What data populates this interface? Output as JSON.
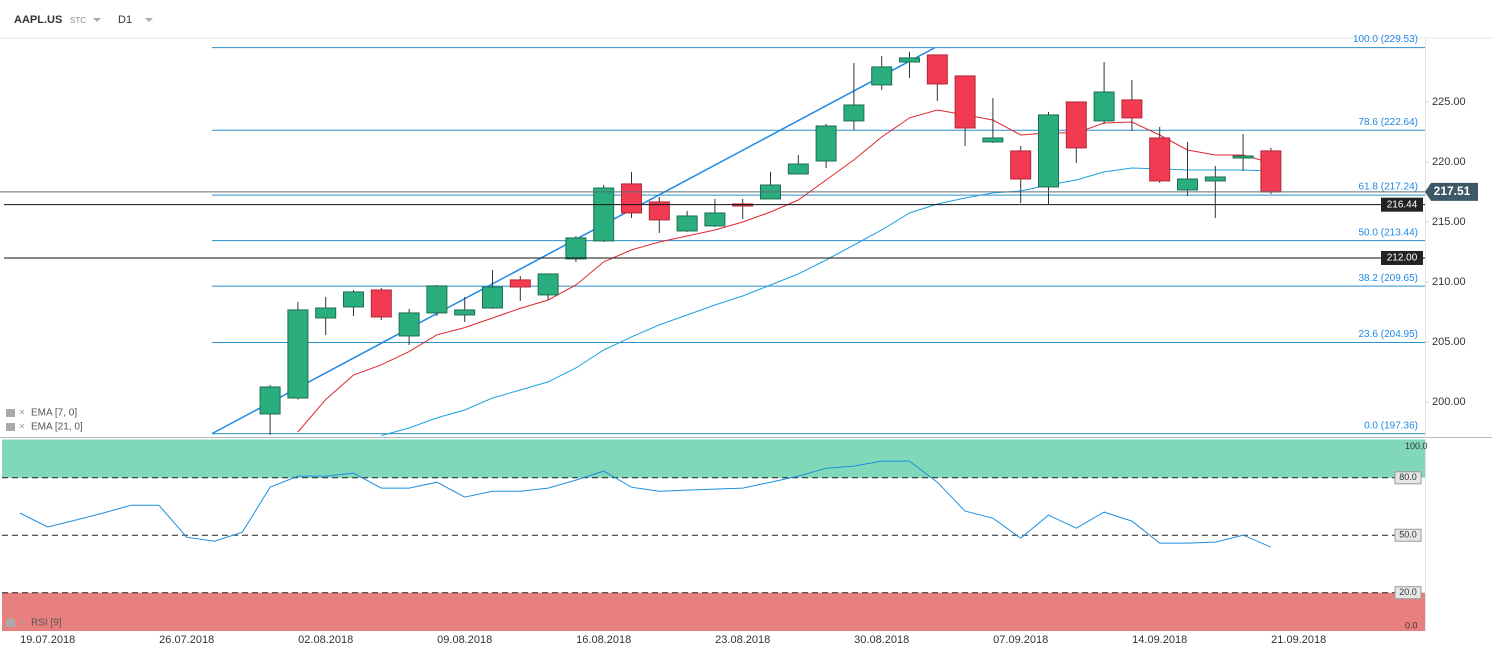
{
  "header": {
    "symbol": "AAPL.US",
    "market": "STC",
    "interval": "D1"
  },
  "chart_data": [
    {
      "type": "candlestick",
      "categories": [
        null,
        "19.07.2018",
        null,
        null,
        null,
        null,
        "26.07.2018",
        null,
        null,
        null,
        null,
        "02.08.2018",
        null,
        null,
        null,
        null,
        "09.08.2018",
        null,
        null,
        null,
        null,
        "16.08.2018",
        null,
        null,
        null,
        null,
        "23.08.2018",
        null,
        null,
        null,
        null,
        "30.08.2018",
        null,
        null,
        null,
        null,
        "07.09.2018",
        null,
        null,
        null,
        null,
        "14.09.2018",
        null,
        null,
        null,
        null,
        "21.09.2018",
        null,
        null,
        null,
        null
      ],
      "open": [
        null,
        null,
        null,
        null,
        null,
        null,
        null,
        null,
        null,
        199.0,
        200.33,
        207.0,
        207.92,
        209.33,
        205.5,
        207.42,
        207.25,
        207.83,
        210.17,
        208.92,
        211.92,
        213.42,
        218.17,
        216.67,
        214.25,
        214.67,
        216.5,
        216.92,
        219.0,
        220.08,
        223.42,
        226.42,
        228.33,
        228.92,
        227.17,
        221.67,
        220.92,
        217.92,
        225.0,
        223.42,
        225.17,
        222.0,
        217.67,
        218.42,
        220.33,
        220.92,
        null,
        null,
        null,
        null,
        null
      ],
      "high": [
        null,
        null,
        null,
        null,
        null,
        null,
        null,
        null,
        null,
        201.42,
        208.33,
        208.75,
        209.33,
        209.5,
        207.75,
        209.75,
        208.75,
        211.0,
        210.5,
        210.67,
        213.83,
        218.08,
        219.17,
        217.08,
        215.92,
        216.92,
        216.92,
        219.17,
        220.58,
        223.17,
        228.25,
        228.83,
        229.17,
        228.92,
        227.17,
        225.33,
        221.33,
        224.17,
        225.0,
        228.33,
        226.83,
        222.92,
        221.67,
        219.67,
        222.33,
        221.17,
        null,
        null,
        null,
        null,
        null
      ],
      "low": [
        null,
        null,
        null,
        null,
        null,
        null,
        null,
        null,
        null,
        197.25,
        200.2,
        205.58,
        207.17,
        206.83,
        204.75,
        207.17,
        206.67,
        207.75,
        208.42,
        208.5,
        211.67,
        213.33,
        215.33,
        214.08,
        214.17,
        214.58,
        215.25,
        216.92,
        219.0,
        219.5,
        222.67,
        226.0,
        227.0,
        225.08,
        221.33,
        221.58,
        216.58,
        216.5,
        219.92,
        223.17,
        222.58,
        218.25,
        217.17,
        215.33,
        219.25,
        217.33,
        null,
        null,
        null,
        null,
        null
      ],
      "close": [
        null,
        null,
        null,
        null,
        null,
        null,
        null,
        null,
        null,
        201.25,
        207.67,
        207.83,
        209.17,
        207.08,
        207.42,
        209.67,
        207.67,
        209.58,
        209.58,
        210.67,
        213.67,
        217.83,
        215.75,
        215.17,
        215.5,
        215.75,
        216.33,
        218.08,
        219.83,
        223.0,
        224.75,
        227.92,
        228.67,
        226.5,
        222.83,
        222.0,
        218.58,
        223.92,
        221.17,
        225.83,
        223.67,
        218.42,
        218.58,
        218.75,
        220.5,
        217.5,
        null,
        null,
        null,
        null,
        null
      ],
      "up_color": "#2bae7e",
      "down_color": "#f23a52",
      "series": [
        {
          "name": "EMA [7, 0]",
          "color": "#e0262f",
          "values": [
            null,
            null,
            null,
            null,
            null,
            null,
            null,
            null,
            null,
            null,
            197.5,
            200.2,
            202.25,
            203.1,
            204.2,
            205.6,
            206.2,
            207.0,
            207.8,
            208.5,
            209.75,
            211.67,
            212.67,
            213.33,
            213.83,
            214.33,
            215.0,
            215.83,
            216.83,
            218.5,
            220.17,
            222.08,
            223.67,
            224.33,
            223.92,
            223.5,
            222.25,
            222.42,
            222.42,
            223.25,
            223.33,
            222.25,
            221.0,
            220.58,
            220.58,
            219.92,
            null,
            null,
            null,
            null,
            null
          ]
        },
        {
          "name": "EMA [21, 0]",
          "color": "#1ea0e0",
          "values": [
            null,
            null,
            null,
            null,
            null,
            null,
            null,
            null,
            null,
            null,
            null,
            null,
            null,
            197.2,
            197.83,
            198.67,
            199.33,
            200.33,
            201.0,
            201.67,
            202.83,
            204.33,
            205.42,
            206.42,
            207.25,
            208.08,
            208.83,
            209.75,
            210.67,
            211.83,
            213.08,
            214.33,
            215.75,
            216.5,
            217.0,
            217.42,
            217.58,
            218.08,
            218.5,
            219.17,
            219.5,
            219.42,
            219.33,
            219.33,
            219.33,
            219.25,
            null,
            null,
            null,
            null,
            null
          ]
        }
      ],
      "ylim": [
        197.08,
        230.33
      ],
      "yticks": [
        {
          "value": 200,
          "label": "200.00"
        },
        {
          "value": 205,
          "label": "205.00"
        },
        {
          "value": 210,
          "label": "210.00"
        },
        {
          "value": 215,
          "label": "215.00"
        },
        {
          "value": 220,
          "label": "220.00"
        },
        {
          "value": 225,
          "label": "225.00"
        }
      ],
      "fibonacci": {
        "color": "#2d8fc9",
        "levels": [
          {
            "value": 229.53,
            "label": "100.0 (229.53)"
          },
          {
            "value": 222.64,
            "label": "78.6 (222.64)"
          },
          {
            "value": 217.24,
            "label": "61.8 (217.24)"
          },
          {
            "value": 213.44,
            "label": "50.0 (213.44)"
          },
          {
            "value": 209.65,
            "label": "38.2 (209.65)"
          },
          {
            "value": 204.95,
            "label": "23.6 (204.95)"
          },
          {
            "value": 197.36,
            "label": "0.0 (197.36)"
          }
        ]
      },
      "price_lines": [
        {
          "value": 216.44,
          "label": "216.44"
        },
        {
          "value": 212.0,
          "label": "212.00"
        }
      ],
      "last_price": {
        "value": 217.51,
        "label": "217.51"
      }
    },
    {
      "type": "line",
      "series": [
        {
          "name": "RSI [9]",
          "color": "#1e90e0",
          "values": [
            61.6,
            54.3,
            57.9,
            61.6,
            65.7,
            65.7,
            49.0,
            46.9,
            51.6,
            75.1,
            80.9,
            80.9,
            82.4,
            74.6,
            74.6,
            77.7,
            69.9,
            73.0,
            73.0,
            74.6,
            78.8,
            83.5,
            75.1,
            73.0,
            73.6,
            74.1,
            74.6,
            77.7,
            80.9,
            85.0,
            86.1,
            88.7,
            88.7,
            77.7,
            62.6,
            58.9,
            48.5,
            60.5,
            53.7,
            62.1,
            57.4,
            45.9,
            45.9,
            46.4,
            50.1,
            43.8,
            null,
            null,
            null,
            null,
            null
          ]
        }
      ],
      "ylim": [
        0,
        100
      ],
      "yticks": [
        {
          "value": 100,
          "label": "100.0"
        },
        {
          "value": 80,
          "label": "80.0"
        },
        {
          "value": 50,
          "label": "50.0"
        },
        {
          "value": 20,
          "label": "20.0"
        },
        {
          "value": 0,
          "label": "0.0"
        }
      ],
      "bands": [
        {
          "from": 80,
          "to": 100,
          "color": "#80d8b8"
        },
        {
          "from": 0,
          "to": 20,
          "color": "#e88080"
        }
      ]
    }
  ]
}
